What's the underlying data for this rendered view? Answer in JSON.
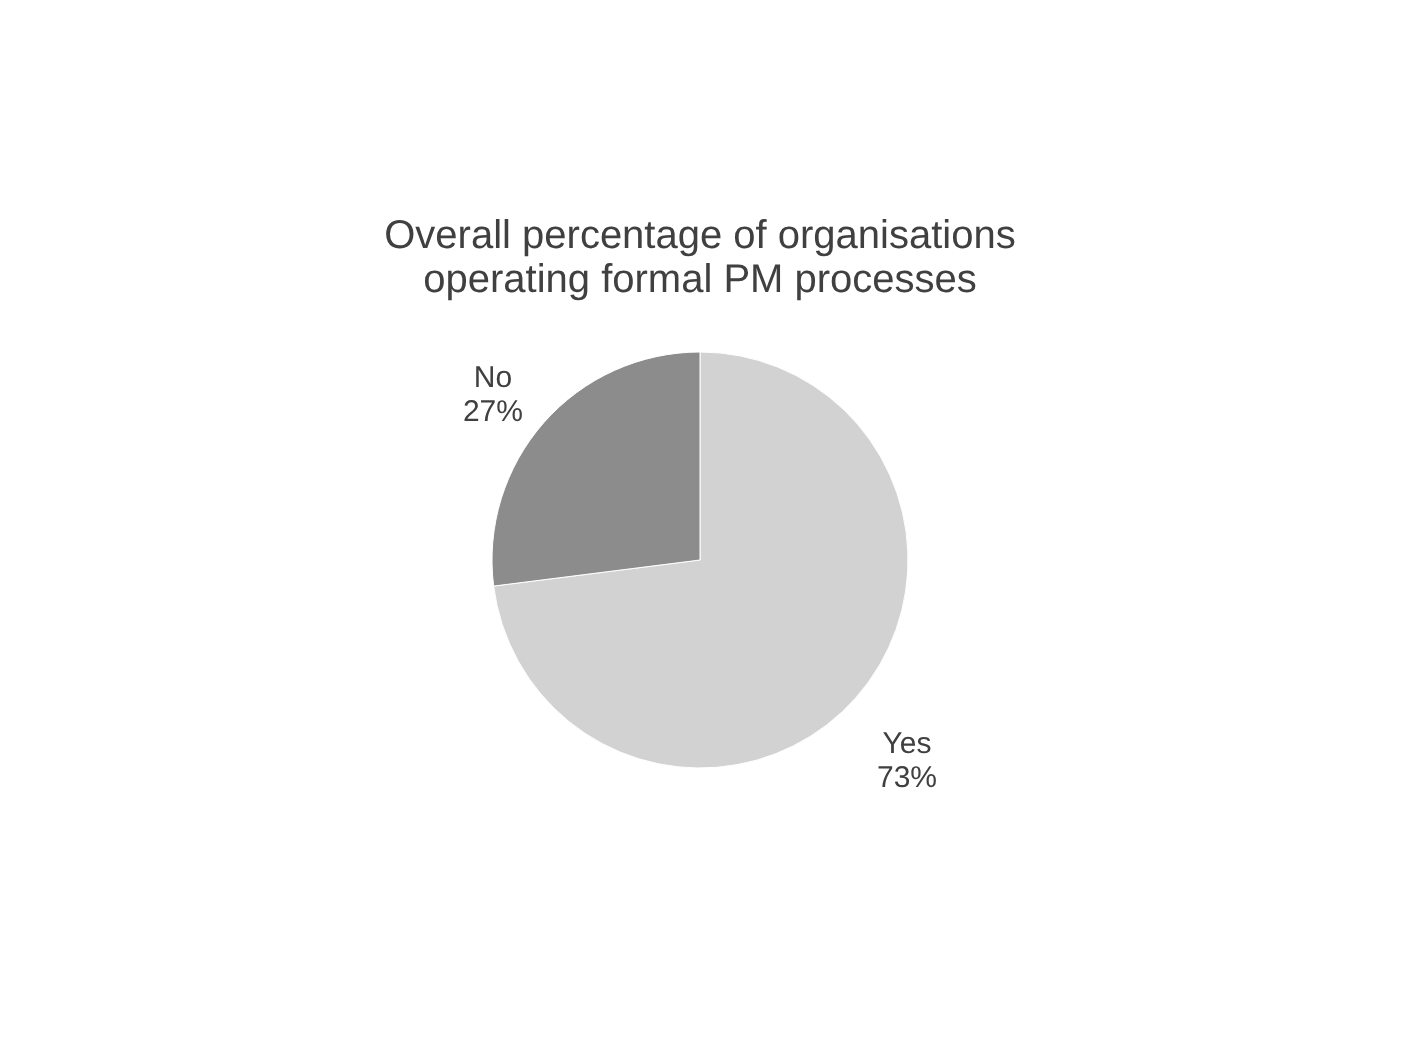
{
  "chart_data": {
    "type": "pie",
    "title": [
      "Overall percentage of organisations",
      "operating formal PM processes"
    ],
    "categories": [
      "Yes",
      "No"
    ],
    "values": [
      73,
      27
    ],
    "colors": [
      "#d2d2d2",
      "#8c8c8c"
    ],
    "value_labels": [
      "73%",
      "27%"
    ],
    "legend": false
  }
}
